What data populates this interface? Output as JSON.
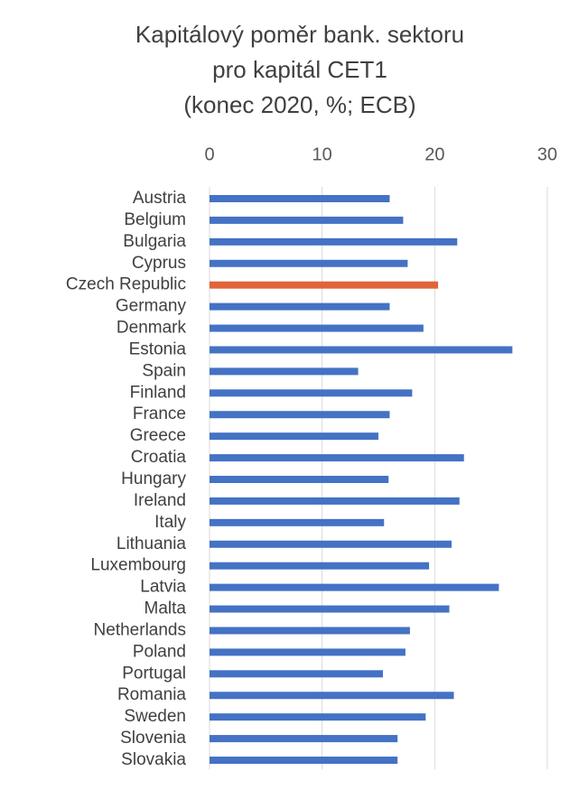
{
  "chart_data": {
    "type": "barh",
    "title": [
      "Kapitálový poměr bank. sektoru",
      "pro kapitál CET1",
      "(konec 2020, %; ECB)"
    ],
    "categories": [
      "Austria",
      "Belgium",
      "Bulgaria",
      "Cyprus",
      "Czech Republic",
      "Germany",
      "Denmark",
      "Estonia",
      "Spain",
      "Finland",
      "France",
      "Greece",
      "Croatia",
      "Hungary",
      "Ireland",
      "Italy",
      "Lithuania",
      "Luxembourg",
      "Latvia",
      "Malta",
      "Netherlands",
      "Poland",
      "Portugal",
      "Romania",
      "Sweden",
      "Slovenia",
      "Slovakia"
    ],
    "values": [
      16.0,
      17.2,
      22.0,
      17.6,
      20.3,
      16.0,
      19.0,
      26.9,
      13.2,
      18.0,
      16.0,
      15.0,
      22.6,
      15.9,
      22.2,
      15.5,
      21.5,
      19.5,
      25.7,
      21.3,
      17.8,
      17.4,
      15.4,
      21.7,
      19.2,
      16.7,
      16.7
    ],
    "colors": [
      "#4472c4",
      "#4472c4",
      "#4472c4",
      "#4472c4",
      "#e0643a",
      "#4472c4",
      "#4472c4",
      "#4472c4",
      "#4472c4",
      "#4472c4",
      "#4472c4",
      "#4472c4",
      "#4472c4",
      "#4472c4",
      "#4472c4",
      "#4472c4",
      "#4472c4",
      "#4472c4",
      "#4472c4",
      "#4472c4",
      "#4472c4",
      "#4472c4",
      "#4472c4",
      "#4472c4",
      "#4472c4",
      "#4472c4",
      "#4472c4"
    ],
    "xlim": [
      0,
      30
    ],
    "xticks": [
      0,
      10,
      20,
      30
    ],
    "grid": true
  }
}
